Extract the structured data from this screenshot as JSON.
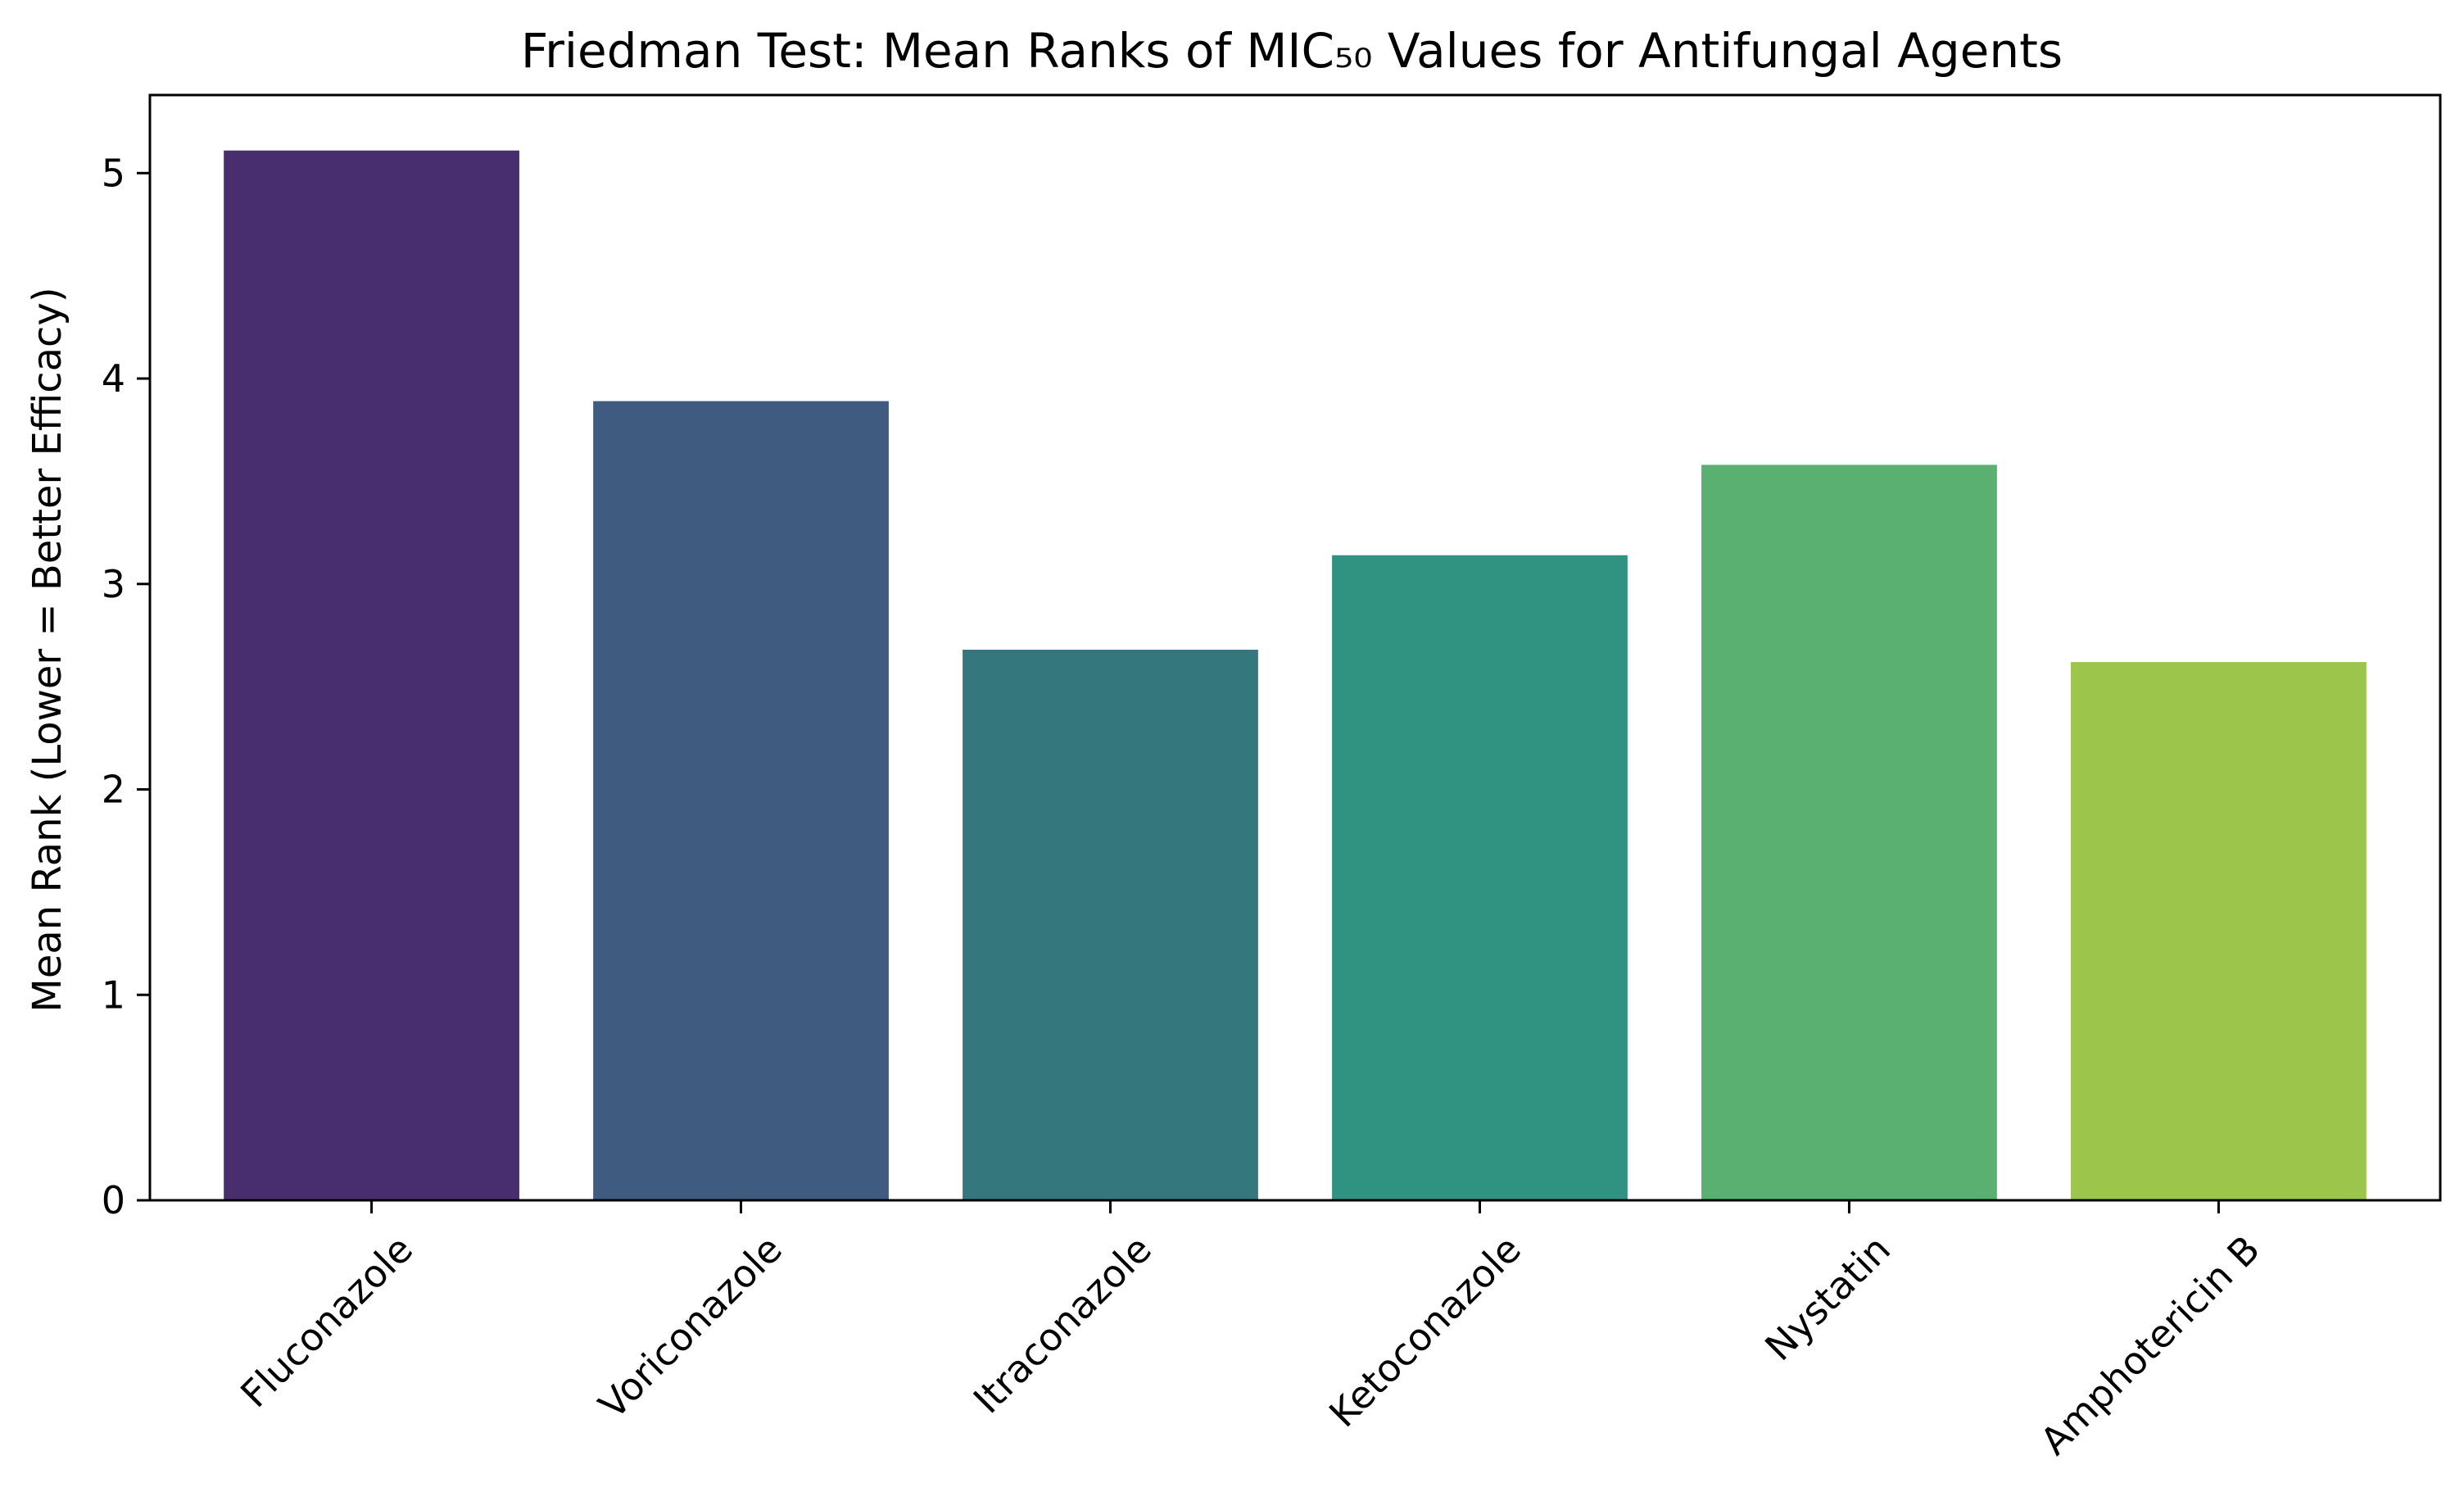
{
  "chart_data": {
    "type": "bar",
    "title": "Friedman Test: Mean Ranks of MIC₅₀ Values for Antifungal Agents",
    "xlabel": "",
    "ylabel": "Mean Rank (Lower = Better Efficacy)",
    "categories": [
      "Fluconazole",
      "Voriconazole",
      "Itraconazole",
      "Ketoconazole",
      "Nystatin",
      "Amphotericin B"
    ],
    "values": [
      5.11,
      3.89,
      2.68,
      3.14,
      3.58,
      2.62
    ],
    "colors": [
      "#482e6f",
      "#3f5c80",
      "#34777d",
      "#309280",
      "#5ab071",
      "#9bc54b"
    ],
    "ylim": [
      0,
      5.38
    ],
    "yticks": [
      0,
      1,
      2,
      3,
      4,
      5
    ],
    "grid": false,
    "legend": "none"
  }
}
